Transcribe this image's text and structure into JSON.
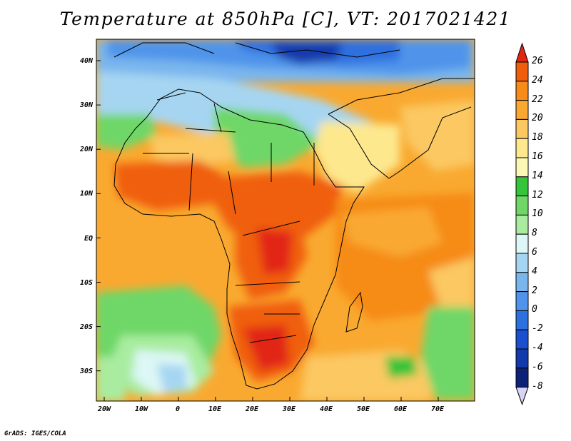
{
  "title": "Temperature at 850hPa [C], VT: 2017021421",
  "lat_labels": [
    "40N",
    "30N",
    "20N",
    "10N",
    "EQ",
    "10S",
    "20S",
    "30S"
  ],
  "lon_labels": [
    "20W",
    "10W",
    "0",
    "10E",
    "20E",
    "30E",
    "40E",
    "50E",
    "60E",
    "70E"
  ],
  "colorbar": {
    "labels": [
      "26",
      "24",
      "22",
      "20",
      "18",
      "16",
      "14",
      "12",
      "10",
      "8",
      "6",
      "4",
      "2",
      "0",
      "-2",
      "-4",
      "-6",
      "-8"
    ],
    "colors": [
      "#e12612",
      "#f05e0c",
      "#f68b18",
      "#f9a930",
      "#fbc862",
      "#fde88e",
      "#fbf7b4",
      "#36c43a",
      "#6ed768",
      "#a9eca0",
      "#dcf7f5",
      "#a6d5f2",
      "#79b6ee",
      "#4f94ea",
      "#2d70df",
      "#1b4fcf",
      "#133aab",
      "#0b2277",
      "#d8d4f5"
    ]
  },
  "credit": "GrADS: IGES/COLA"
}
